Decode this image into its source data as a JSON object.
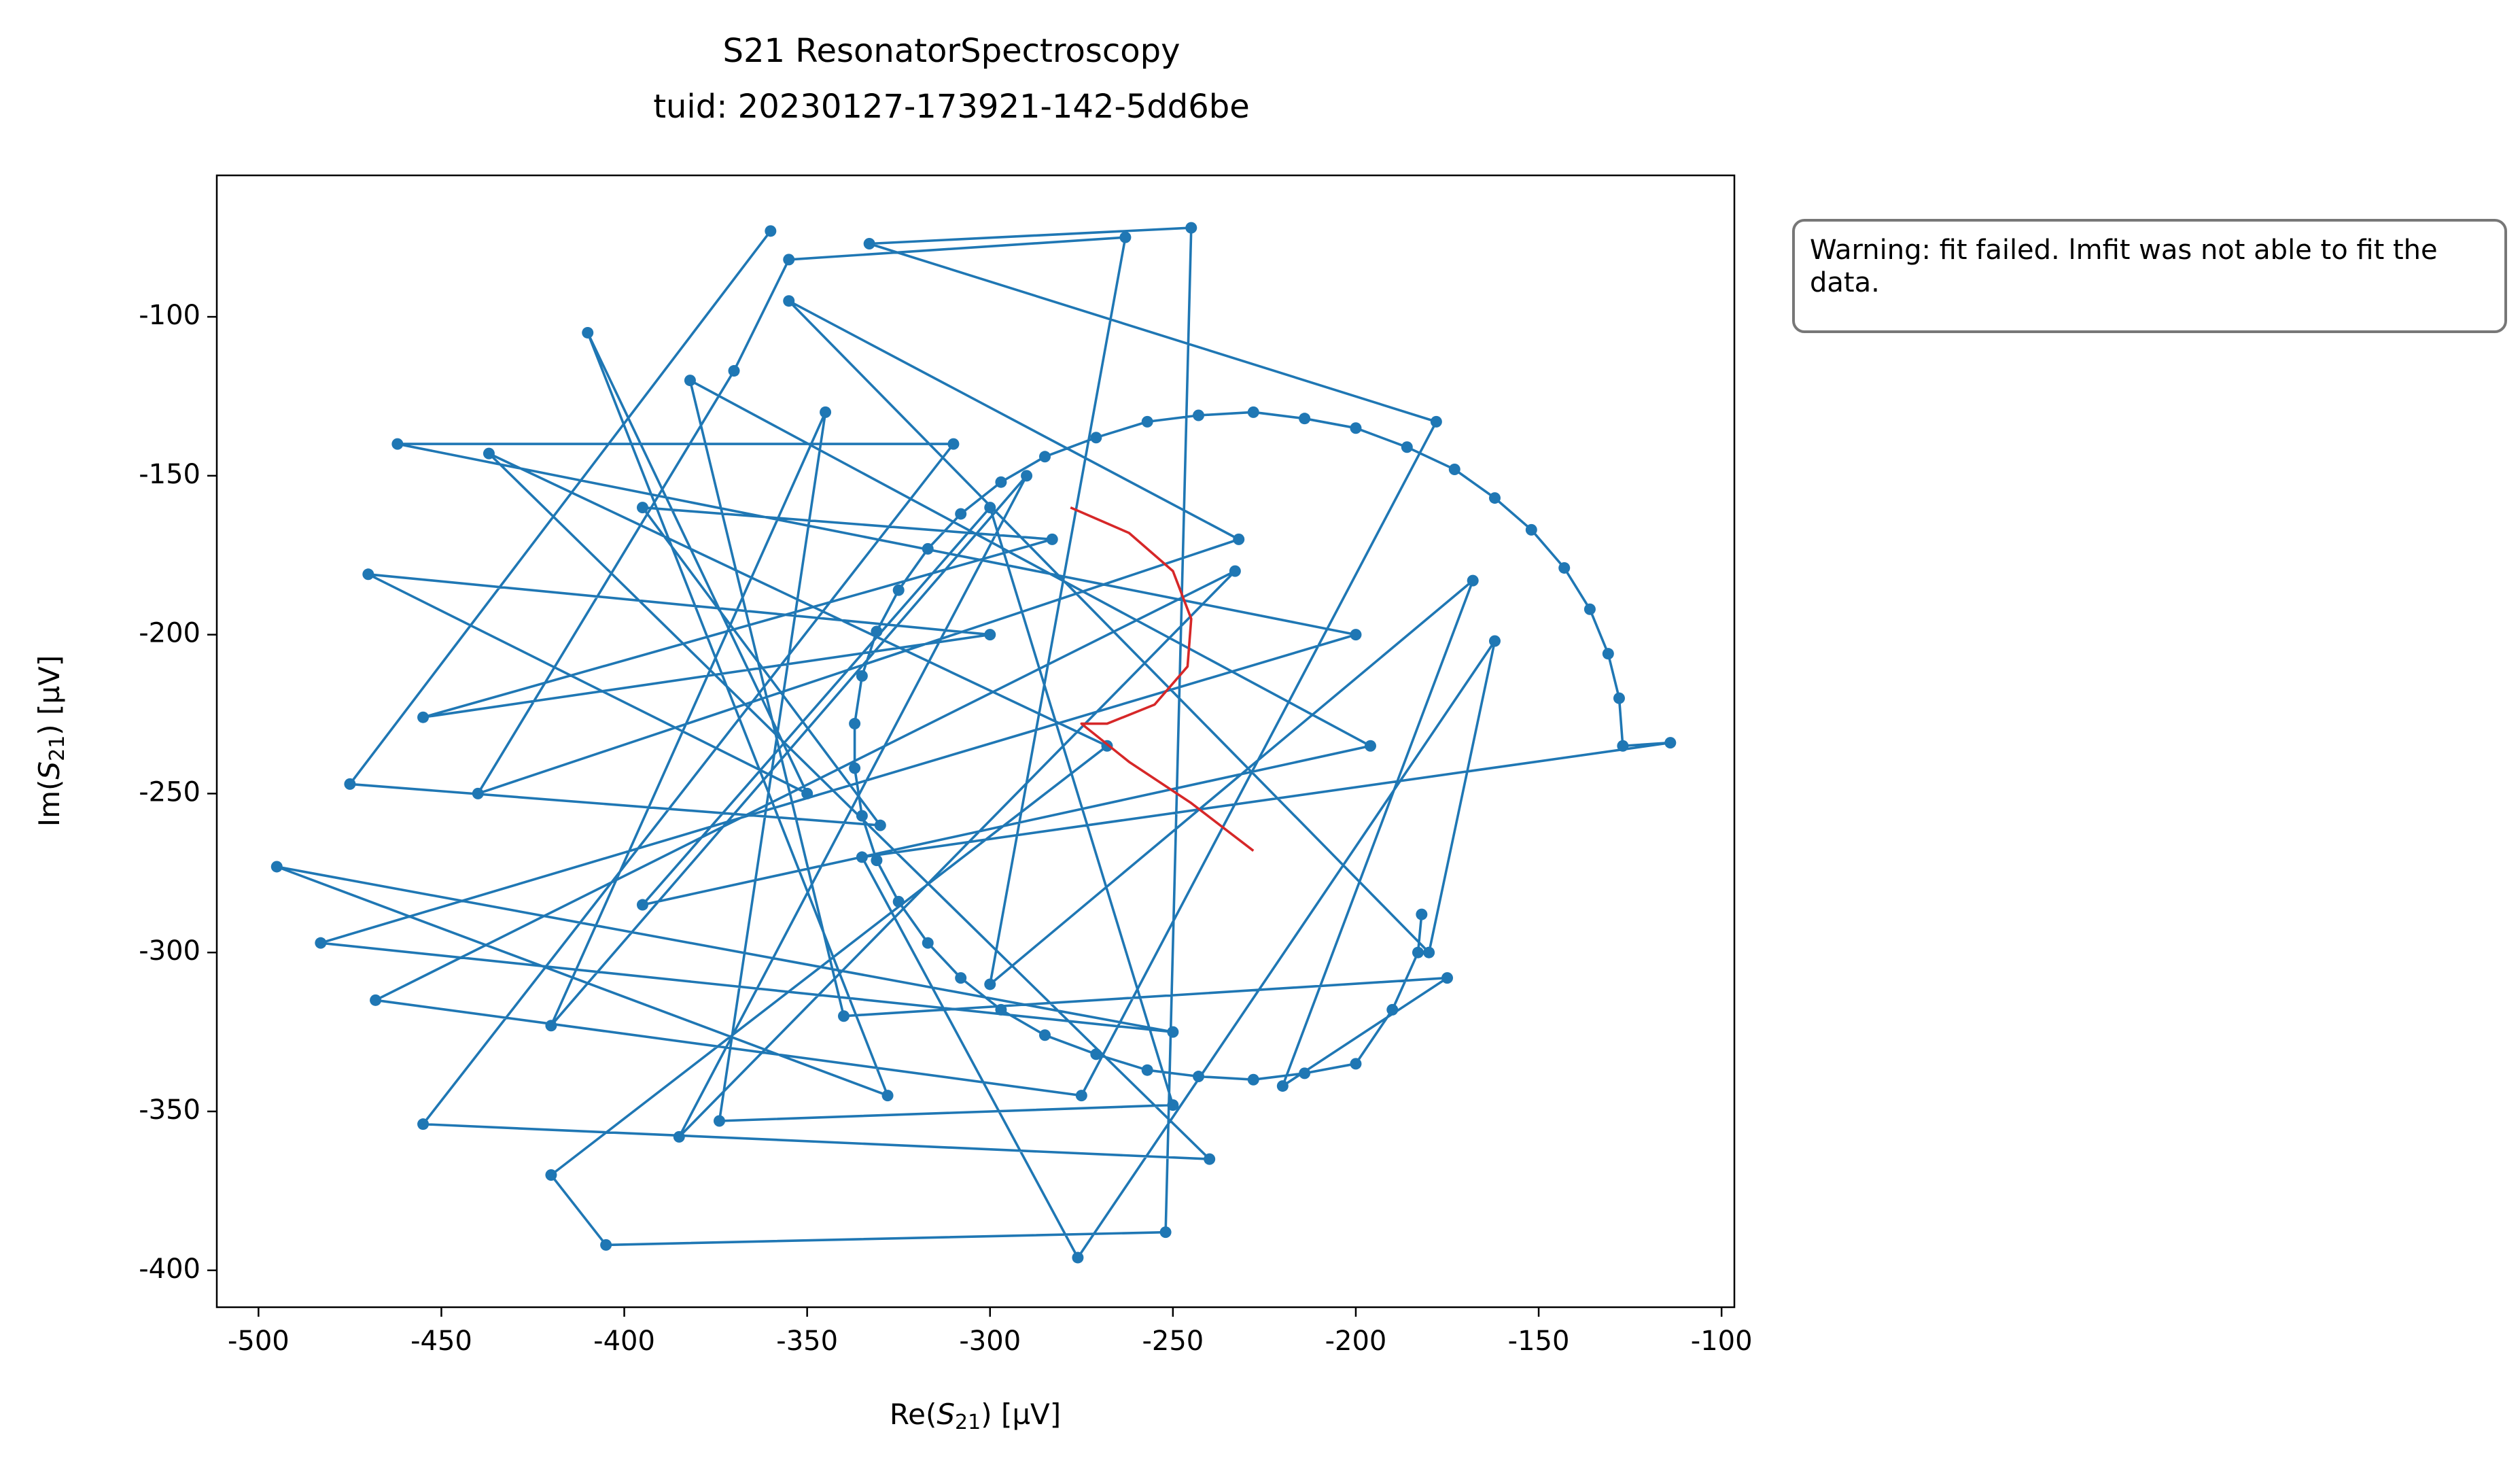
{
  "chart_data": {
    "type": "line",
    "title": "S21 ResonatorSpectroscopy",
    "subtitle": "tuid: 20230127-173921-142-5dd6be",
    "xlabel": "Re(S21) [µV]",
    "ylabel": "Im(S21) [µV]",
    "annotation": "Warning: fit failed. lmfit was not able to fit the data.",
    "xlim": [
      -511.4,
      -96.5
    ],
    "ylim": [
      -411.6,
      -55.5
    ],
    "xticks": [
      -500,
      -450,
      -400,
      -350,
      -300,
      -250,
      -200,
      -150,
      -100
    ],
    "yticks": [
      -100,
      -150,
      -200,
      -250,
      -300,
      -350,
      -400
    ],
    "series": [
      {
        "color": "#1f77b4",
        "marker": true,
        "x": [
          -360,
          -475,
          -330,
          -395,
          -283,
          -455,
          -300,
          -470,
          -350,
          -410,
          -328,
          -495,
          -250,
          -483,
          -200,
          -462,
          -310,
          -455,
          -240,
          -437,
          -268,
          -420,
          -405,
          -252,
          -245,
          -333,
          -178,
          -275,
          -468,
          -233,
          -385,
          -290,
          -420,
          -345,
          -374,
          -250,
          -300,
          -395,
          -196,
          -382,
          -340,
          -175,
          -220,
          -168,
          -300,
          -263,
          -355,
          -370,
          -440,
          -232,
          -355,
          -180,
          -162,
          -276,
          -335,
          -114,
          -127,
          -128,
          -131,
          -136,
          -143,
          -152,
          -162,
          -173,
          -186,
          -200,
          -214,
          -228,
          -243,
          -257,
          -271,
          -285,
          -297,
          -308,
          -317,
          -325,
          -331,
          -335,
          -337,
          -337,
          -335,
          -331,
          -325,
          -317,
          -308,
          -297,
          -285,
          -271,
          -257,
          -243,
          -228,
          -214,
          -200,
          -190,
          -183,
          -182
        ],
        "y": [
          -73,
          -247,
          -260,
          -160,
          -170,
          -226,
          -200,
          -181,
          -250,
          -105,
          -345,
          -273,
          -325,
          -297,
          -200,
          -140,
          -140,
          -354,
          -365,
          -143,
          -235,
          -370,
          -392,
          -388,
          -72,
          -77,
          -133,
          -345,
          -315,
          -180,
          -358,
          -150,
          -323,
          -130,
          -353,
          -348,
          -160,
          -285,
          -235,
          -120,
          -320,
          -308,
          -342,
          -183,
          -310,
          -75,
          -82,
          -117,
          -250,
          -170,
          -95,
          -300,
          -202,
          -396,
          -270,
          -234,
          -235,
          -220,
          -206,
          -192,
          -179,
          -167,
          -157,
          -148,
          -141,
          -135,
          -132,
          -130,
          -131,
          -133,
          -138,
          -144,
          -152,
          -162,
          -173,
          -186,
          -199,
          -213,
          -228,
          -242,
          -257,
          -271,
          -284,
          -297,
          -308,
          -318,
          -326,
          -332,
          -337,
          -339,
          -340,
          -338,
          -335,
          -318,
          -300,
          -288
        ]
      },
      {
        "color": "#d62728",
        "marker": false,
        "x": [
          -278,
          -262,
          -250,
          -245,
          -246,
          -255,
          -268,
          -275,
          -262,
          -245,
          -228
        ],
        "y": [
          -160,
          -168,
          -180,
          -195,
          -210,
          -222,
          -228,
          -228,
          -240,
          -253,
          -268
        ]
      }
    ]
  }
}
